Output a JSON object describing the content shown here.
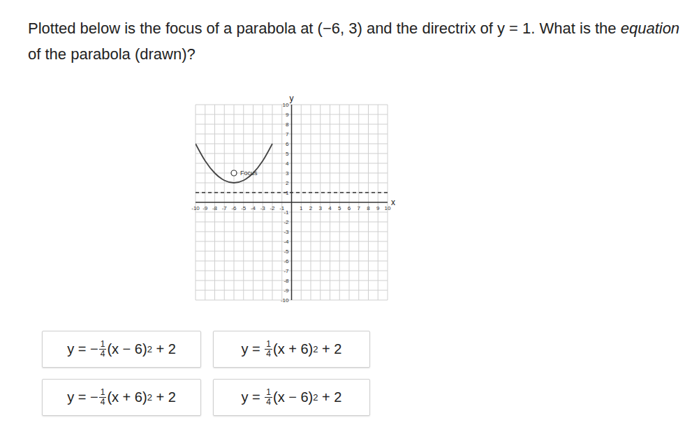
{
  "question": [
    {
      "text": "Plotted below is the focus of a parabola at (−6, 3) and the directrix of y = 1. What is the "
    },
    {
      "text": "equation",
      "italic": true
    },
    {
      "text": " of the parabola (drawn)?"
    }
  ],
  "chart_data": {
    "type": "line",
    "xlim": [
      -10,
      10
    ],
    "ylim": [
      -10,
      10
    ],
    "xticks": [
      -10,
      -9,
      -8,
      -7,
      -6,
      -5,
      -4,
      -3,
      -2,
      -1,
      1,
      2,
      3,
      4,
      5,
      6,
      7,
      8,
      9,
      10
    ],
    "yticks": [
      -10,
      -9,
      -8,
      -7,
      -6,
      -5,
      -4,
      -3,
      -2,
      -1,
      1,
      2,
      3,
      4,
      5,
      6,
      7,
      8,
      9,
      10
    ],
    "grid": true,
    "x_label": "x",
    "y_label": "y",
    "parabola": {
      "x": [
        -10,
        -9,
        -8,
        -7,
        -6,
        -5,
        -4,
        -3,
        -2
      ],
      "values": [
        6,
        4.25,
        3,
        2.25,
        2,
        2.25,
        3,
        4.25,
        6
      ],
      "color": "#444444",
      "line_style": "solid"
    },
    "directrix": {
      "x": [
        -10,
        10
      ],
      "values": [
        1,
        1
      ],
      "color": "#333333",
      "line_style": "dashed"
    },
    "focus": {
      "x": -6,
      "y": 3,
      "label": "Focus"
    }
  },
  "choices": [
    {
      "prefix": "y = −",
      "numerator": "1",
      "denominator": "4",
      "body": "(x − 6)",
      "exponent": "2",
      "suffix": " + 2"
    },
    {
      "prefix": "y = ",
      "numerator": "1",
      "denominator": "4",
      "body": "(x + 6)",
      "exponent": "2",
      "suffix": " + 2"
    },
    {
      "prefix": "y = −",
      "numerator": "1",
      "denominator": "4",
      "body": "(x + 6)",
      "exponent": "2",
      "suffix": " + 2"
    },
    {
      "prefix": "y = ",
      "numerator": "1",
      "denominator": "4",
      "body": "(x − 6)",
      "exponent": "2",
      "suffix": " + 2"
    }
  ]
}
